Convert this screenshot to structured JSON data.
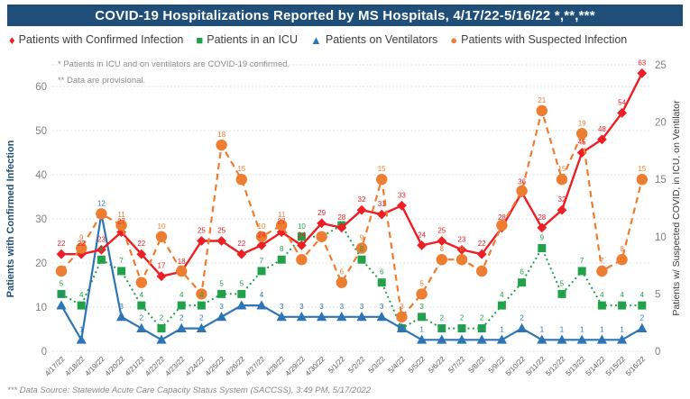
{
  "title": "COVID-19 Hospitalizations Reported by MS Hospitals, 4/17/22-5/16/22 *,**,***",
  "notes": {
    "note1": "* Patients in ICU and on ventilators are COVID-19 confirmed.",
    "note2": "** Data are provisional."
  },
  "footer": "*** Data Source: Statewide Acute Care Capacity Status System (SACCSS), 3:49 PM, 5/17/2022",
  "colors": {
    "title_bar": "#1F4E79",
    "confirmed": "#ED1F24",
    "icu": "#22A14B",
    "ventilator": "#2E75B6",
    "suspected": "#ED7D31",
    "gridline": "#D9D9D9",
    "tick_text": "#808080",
    "date_text": "#595959"
  },
  "legend": {
    "items": [
      {
        "label": "Patients with Confirmed Infection",
        "marker": "diamond",
        "glyph": "♦",
        "color": "#ED1F24"
      },
      {
        "label": "Patients in an ICU",
        "marker": "square",
        "glyph": "■",
        "color": "#22A14B"
      },
      {
        "label": "Patients on Ventilators",
        "marker": "triangle",
        "glyph": "▲",
        "color": "#2E75B6"
      },
      {
        "label": "Patients with Suspected Infection",
        "marker": "circle",
        "glyph": "●",
        "color": "#ED7D31"
      }
    ]
  },
  "axes": {
    "left": {
      "title": "Patients with Confirmed Infection",
      "ticks": [
        60,
        50,
        40,
        30,
        20,
        10,
        0
      ],
      "range": [
        0,
        60
      ]
    },
    "right": {
      "title": "Patients w/ Suspected COVID, in ICU, on Ventilator",
      "ticks": [
        25,
        20,
        15,
        10,
        5,
        0
      ],
      "range": [
        0,
        25
      ]
    }
  },
  "chart_data": {
    "type": "line",
    "title": "COVID-19 Hospitalizations Reported by MS Hospitals, 4/17/22-5/16/22",
    "grid": true,
    "legend_position": "top",
    "xlabel": "",
    "ylabel_left": "Patients with Confirmed Infection",
    "ylabel_right": "Patients w/ Suspected COVID, in ICU, on Ventilator",
    "ylim_left": [
      0,
      60
    ],
    "ylim_right": [
      0,
      25
    ],
    "categories": [
      "4/17/22",
      "4/18/22",
      "4/19/22",
      "4/20/22",
      "4/21/22",
      "4/22/22",
      "4/23/22",
      "4/24/22",
      "4/25/22",
      "4/26/22",
      "4/27/22",
      "4/28/22",
      "4/29/22",
      "4/30/22",
      "5/1/22",
      "5/2/22",
      "5/3/22",
      "5/4/22",
      "5/5/22",
      "5/6/22",
      "5/7/22",
      "5/8/22",
      "5/9/22",
      "5/10/22",
      "5/11/22",
      "5/12/22",
      "5/13/22",
      "5/14/22",
      "5/15/22",
      "5/16/22"
    ],
    "series": [
      {
        "name": "Patients with Confirmed Infection",
        "axis": "left",
        "marker": "diamond",
        "line": "solid",
        "values": [
          22,
          22,
          23,
          27,
          22,
          17,
          18,
          25,
          25,
          22,
          24,
          27,
          24,
          29,
          28,
          32,
          31,
          33,
          24,
          25,
          23,
          22,
          28,
          36,
          28,
          32,
          45,
          48,
          54,
          63
        ]
      },
      {
        "name": "Patients in an ICU",
        "axis": "right",
        "marker": "square",
        "line": "dotted",
        "values": [
          5,
          4,
          8,
          7,
          4,
          2,
          4,
          4,
          5,
          5,
          7,
          8,
          10,
          10,
          11,
          8,
          6,
          2,
          3,
          2,
          2,
          2,
          4,
          6,
          9,
          5,
          7,
          4,
          4,
          4
        ]
      },
      {
        "name": "Patients on Ventilators",
        "axis": "right",
        "marker": "triangle",
        "line": "solid",
        "values": [
          4,
          1,
          12,
          3,
          2,
          1,
          2,
          2,
          3,
          4,
          4,
          3,
          3,
          3,
          3,
          3,
          3,
          2,
          1,
          1,
          1,
          1,
          1,
          2,
          1,
          1,
          1,
          1,
          1,
          2
        ]
      },
      {
        "name": "Patients with Suspected Infection",
        "axis": "right",
        "marker": "circle",
        "line": "dashed",
        "values": [
          7,
          9,
          12,
          11,
          6,
          10,
          7,
          5,
          18,
          15,
          10,
          11,
          8,
          10,
          6,
          9,
          15,
          3,
          5,
          8,
          8,
          7,
          11,
          14,
          21,
          15,
          19,
          7,
          8,
          15
        ]
      }
    ],
    "hidden_point_labels": {
      "Patients with Confirmed Infection": [],
      "Patients in an ICU": [
        13,
        14,
        17
      ],
      "Patients on Ventilators": [
        5,
        9,
        17
      ],
      "Patients with Suspected Infection": [
        0,
        2,
        4,
        6,
        7,
        12,
        13,
        21,
        22,
        23
      ]
    }
  }
}
